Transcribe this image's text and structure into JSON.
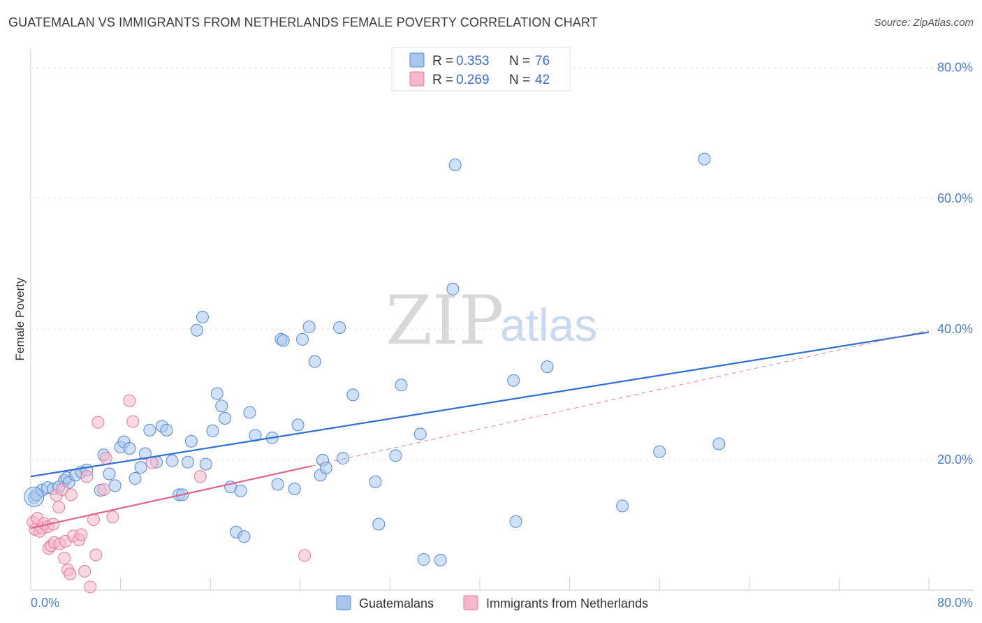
{
  "header": {
    "title": "GUATEMALAN VS IMMIGRANTS FROM NETHERLANDS FEMALE POVERTY CORRELATION CHART",
    "source": "Source: ZipAtlas.com"
  },
  "watermark": {
    "zip": "ZIP",
    "atlas": "atlas"
  },
  "colors": {
    "blue": "#4f8ad8",
    "blue_fill": "#a9c6ee",
    "blue_line": "#2f6fd0",
    "pink": "#e8799b",
    "pink_fill": "#f5b8cb",
    "pink_line": "#e0638d",
    "grid": "#e3e3e3",
    "tick_text": "#4a7cc9"
  },
  "chart_data": {
    "type": "scatter",
    "title": "GUATEMALAN VS IMMIGRANTS FROM NETHERLANDS FEMALE POVERTY CORRELATION CHART",
    "xlabel": "",
    "ylabel": "Female Poverty",
    "xlim": [
      0,
      80
    ],
    "ylim": [
      0,
      82
    ],
    "x_tick_labels": [
      "0.0%",
      "80.0%"
    ],
    "y_ticks": [
      20,
      40,
      60,
      80
    ],
    "y_tick_labels": [
      "20.0%",
      "40.0%",
      "60.0%",
      "80.0%"
    ],
    "legend_top": [
      {
        "r_label": "R =",
        "r": "0.353",
        "n_label": "N =",
        "n": "76"
      },
      {
        "r_label": "R =",
        "r": "0.269",
        "n_label": "N =",
        "n": "42"
      }
    ],
    "series": [
      {
        "name": "Guatemalans",
        "color": "blue",
        "trend": {
          "x0": 0,
          "y0": 17.4,
          "x1": 80,
          "y1": 39.5,
          "style": "solid"
        },
        "points": [
          [
            0.3,
            14.2
          ],
          [
            0.5,
            14.6
          ],
          [
            1.0,
            15.3
          ],
          [
            1.5,
            15.7
          ],
          [
            2.0,
            15.5
          ],
          [
            2.5,
            15.8
          ],
          [
            3.0,
            16.8
          ],
          [
            3.2,
            17.2
          ],
          [
            3.4,
            16.5
          ],
          [
            4.0,
            17.6
          ],
          [
            4.5,
            18.1
          ],
          [
            5.0,
            18.4
          ],
          [
            6.2,
            15.3
          ],
          [
            6.5,
            20.7
          ],
          [
            7.0,
            17.8
          ],
          [
            7.5,
            16.0
          ],
          [
            8.0,
            21.9
          ],
          [
            8.3,
            22.7
          ],
          [
            8.8,
            21.7
          ],
          [
            9.3,
            17.1
          ],
          [
            9.8,
            18.8
          ],
          [
            10.2,
            20.9
          ],
          [
            10.6,
            24.5
          ],
          [
            11.2,
            19.6
          ],
          [
            11.7,
            25.1
          ],
          [
            12.1,
            24.5
          ],
          [
            12.6,
            19.8
          ],
          [
            13.2,
            14.6
          ],
          [
            13.5,
            14.6
          ],
          [
            14.0,
            19.6
          ],
          [
            14.3,
            22.8
          ],
          [
            14.8,
            39.8
          ],
          [
            15.3,
            41.8
          ],
          [
            15.6,
            19.3
          ],
          [
            16.2,
            24.4
          ],
          [
            16.6,
            30.1
          ],
          [
            17.0,
            28.2
          ],
          [
            17.3,
            26.3
          ],
          [
            17.8,
            15.8
          ],
          [
            18.3,
            8.9
          ],
          [
            18.7,
            15.2
          ],
          [
            19.0,
            8.2
          ],
          [
            19.5,
            27.2
          ],
          [
            20.0,
            23.7
          ],
          [
            21.5,
            23.3
          ],
          [
            22.0,
            16.2
          ],
          [
            22.3,
            38.4
          ],
          [
            22.5,
            38.2
          ],
          [
            23.5,
            15.5
          ],
          [
            23.8,
            25.3
          ],
          [
            24.2,
            38.4
          ],
          [
            24.8,
            40.3
          ],
          [
            25.3,
            35.0
          ],
          [
            25.8,
            17.6
          ],
          [
            26.0,
            19.9
          ],
          [
            26.3,
            18.7
          ],
          [
            27.5,
            40.2
          ],
          [
            27.8,
            20.2
          ],
          [
            28.7,
            29.9
          ],
          [
            30.7,
            16.6
          ],
          [
            31.0,
            10.1
          ],
          [
            32.5,
            20.6
          ],
          [
            33.0,
            31.4
          ],
          [
            34.7,
            23.9
          ],
          [
            35.0,
            4.7
          ],
          [
            36.5,
            4.6
          ],
          [
            37.6,
            46.1
          ],
          [
            37.8,
            65.1
          ],
          [
            43.0,
            32.1
          ],
          [
            43.2,
            10.5
          ],
          [
            46.0,
            34.2
          ],
          [
            52.7,
            12.9
          ],
          [
            56.0,
            21.2
          ],
          [
            60.0,
            66.0
          ],
          [
            61.3,
            22.4
          ]
        ]
      },
      {
        "name": "Immigrants from Netherlands",
        "color": "pink",
        "trend": {
          "x0": 0,
          "y0": 9.5,
          "x1": 25,
          "y1": 19.0,
          "x1_dash": 80,
          "y1_dash": 39.8,
          "style": "solid+dashed"
        },
        "points": [
          [
            0.2,
            10.4
          ],
          [
            0.4,
            9.3
          ],
          [
            0.6,
            11.0
          ],
          [
            0.8,
            9.0
          ],
          [
            1.0,
            9.5
          ],
          [
            1.2,
            10.2
          ],
          [
            1.5,
            9.7
          ],
          [
            1.6,
            6.4
          ],
          [
            1.8,
            6.8
          ],
          [
            2.0,
            10.1
          ],
          [
            2.1,
            7.3
          ],
          [
            2.3,
            14.5
          ],
          [
            2.5,
            12.7
          ],
          [
            2.6,
            7.1
          ],
          [
            2.8,
            15.4
          ],
          [
            3.0,
            4.9
          ],
          [
            3.1,
            7.5
          ],
          [
            3.3,
            3.1
          ],
          [
            3.5,
            2.5
          ],
          [
            3.6,
            14.6
          ],
          [
            3.8,
            8.3
          ],
          [
            4.3,
            7.7
          ],
          [
            4.5,
            8.5
          ],
          [
            4.8,
            2.9
          ],
          [
            5.0,
            17.4
          ],
          [
            5.3,
            0.5
          ],
          [
            5.6,
            10.8
          ],
          [
            5.8,
            5.4
          ],
          [
            6.0,
            25.7
          ],
          [
            6.5,
            15.4
          ],
          [
            6.7,
            20.2
          ],
          [
            7.3,
            11.2
          ],
          [
            8.8,
            29.0
          ],
          [
            9.1,
            25.8
          ],
          [
            10.8,
            19.5
          ],
          [
            15.1,
            17.4
          ],
          [
            24.4,
            5.3
          ]
        ]
      }
    ]
  },
  "bottom_legend": [
    {
      "label": "Guatemalans"
    },
    {
      "label": "Immigrants from Netherlands"
    }
  ]
}
